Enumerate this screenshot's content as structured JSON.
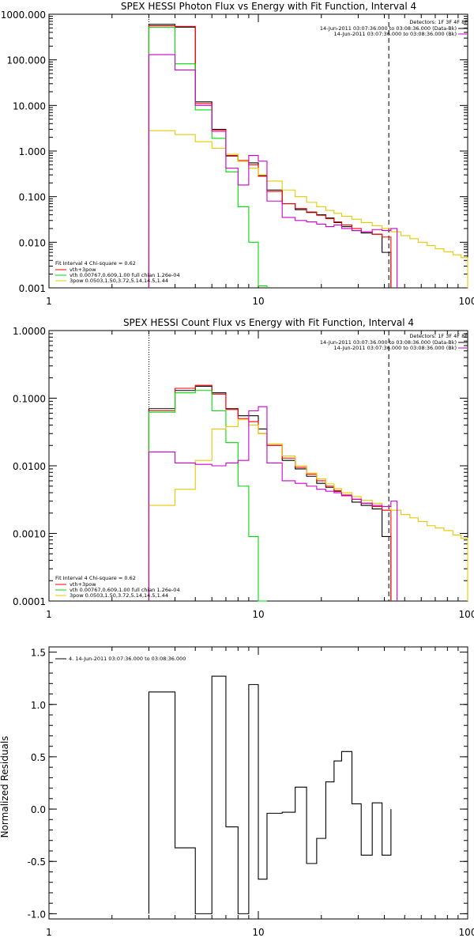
{
  "chart_data": [
    {
      "type": "line",
      "title": "SPEX HESSI Photon Flux vs Energy with Fit Function, Interval 4",
      "x_scale": "log",
      "y_scale": "log",
      "xlim": [
        1,
        100
      ],
      "ylim": [
        0.001,
        1000
      ],
      "x_ticks": [
        1,
        10,
        100
      ],
      "x_tick_labels": [
        "1",
        "10",
        "100"
      ],
      "y_ticks": [
        0.001,
        0.01,
        0.1,
        1,
        10,
        100,
        1000
      ],
      "y_tick_labels": [
        "0.001",
        "0.010",
        "0.100",
        "1.000",
        "10.000",
        "100.000",
        "1000.000"
      ],
      "legend_top_right": [
        "Detectors: 1F 3F 4F 8F",
        "14-Jun-2011 03:07:36.000 to 03:08:36.000 (Data-Bk)",
        "14-Jun-2011 03:07:36.000 to 03:08:36.000 (Bk)"
      ],
      "legend_bottom_left": [
        "Fit Interval 4   Chi-square = 0.62",
        "vth+3pow",
        "vth 0.00767,0.609,1.00   full chian 1.26e-04",
        "3pow 0.0503,1.50,3.72,5.14,14.5,1.44"
      ],
      "vertical_lines": [
        {
          "x": 3,
          "style": "dotted"
        },
        {
          "x": 42,
          "style": "dashed"
        }
      ],
      "series": [
        {
          "name": "Data-Bk",
          "color": "#000000",
          "edges": [
            3,
            4,
            5,
            6,
            7,
            8,
            9,
            10,
            11,
            13,
            15,
            17,
            19,
            21,
            23,
            25,
            28,
            31,
            35,
            39,
            43
          ],
          "values": [
            600,
            520,
            12,
            3.0,
            0.78,
            0.6,
            0.55,
            0.29,
            0.14,
            0.07,
            0.052,
            0.045,
            0.04,
            0.034,
            0.027,
            0.022,
            0.018,
            0.016,
            0.015,
            0.006
          ]
        },
        {
          "name": "vth+3pow",
          "color": "#ff0000",
          "edges": [
            3,
            4,
            5,
            6,
            7,
            8,
            9,
            10,
            11,
            13,
            15,
            17,
            19,
            21,
            23,
            25,
            28,
            31,
            35,
            39,
            43
          ],
          "values": [
            560,
            540,
            11,
            2.9,
            0.8,
            0.62,
            0.5,
            0.28,
            0.13,
            0.07,
            0.055,
            0.046,
            0.039,
            0.033,
            0.028,
            0.024,
            0.02,
            0.017,
            0.015,
            0.013
          ]
        },
        {
          "name": "vth",
          "color": "#00dd00",
          "edges": [
            3,
            4,
            5,
            6,
            7,
            8,
            9,
            10,
            11
          ],
          "values": [
            520,
            82,
            8,
            1.9,
            0.35,
            0.06,
            0.01,
            0.0011
          ]
        },
        {
          "name": "3pow",
          "color": "#e8c800",
          "edges": [
            3,
            4,
            5,
            6,
            7,
            8,
            9,
            10,
            11,
            13,
            15,
            17,
            19,
            21,
            23,
            25,
            28,
            31,
            35,
            39,
            43,
            48,
            53,
            58,
            64,
            70,
            77,
            85,
            93,
            100
          ],
          "values": [
            2.8,
            2.3,
            1.6,
            1.15,
            0.85,
            0.6,
            0.42,
            0.3,
            0.22,
            0.14,
            0.1,
            0.075,
            0.06,
            0.05,
            0.043,
            0.037,
            0.032,
            0.027,
            0.023,
            0.02,
            0.017,
            0.014,
            0.012,
            0.01,
            0.0085,
            0.0072,
            0.0062,
            0.0053,
            0.0046
          ]
        },
        {
          "name": "Bk",
          "color": "#cc00cc",
          "edges": [
            3,
            4,
            5,
            6,
            7,
            8,
            9,
            10,
            11,
            13,
            15,
            17,
            19,
            21,
            23,
            25,
            28,
            31,
            35,
            39,
            43,
            46
          ],
          "values": [
            130,
            60,
            10,
            2.7,
            0.42,
            0.18,
            0.8,
            0.6,
            0.08,
            0.035,
            0.03,
            0.028,
            0.025,
            0.022,
            0.024,
            0.02,
            0.018,
            0.017,
            0.019,
            0.018,
            0.02
          ]
        }
      ]
    },
    {
      "type": "line",
      "title": "SPEX HESSI Count Flux vs Energy with Fit Function, Interval 4",
      "x_scale": "log",
      "y_scale": "log",
      "xlim": [
        1,
        100
      ],
      "ylim": [
        0.0001,
        1
      ],
      "x_ticks": [
        1,
        10,
        100
      ],
      "x_tick_labels": [
        "1",
        "10",
        "100"
      ],
      "y_ticks": [
        0.0001,
        0.001,
        0.01,
        0.1,
        1
      ],
      "y_tick_labels": [
        "0.0001",
        "0.0010",
        "0.0100",
        "0.1000",
        "1.0000"
      ],
      "legend_top_right": [
        "Detectors: 1F 3F 4F 8F",
        "14-Jun-2011 03:07:36.000 to 03:08:36.000 (Data-Bk)",
        "14-Jun-2011 03:07:36.000 to 03:08:36.000 (Bk)"
      ],
      "legend_bottom_left": [
        "Fit Interval 4   Chi-square = 0.62",
        "vth+3pow",
        "vth 0.00767,0.609,1.00   full chian 1.26e-04",
        "3pow 0.0503,1.50,3.72,5.14,14.5,1.44"
      ],
      "vertical_lines": [
        {
          "x": 3,
          "style": "dotted"
        },
        {
          "x": 42,
          "style": "dashed"
        }
      ],
      "series": [
        {
          "name": "Data-Bk",
          "color": "#000000",
          "edges": [
            3,
            4,
            5,
            6,
            7,
            8,
            9,
            10,
            11,
            13,
            15,
            17,
            19,
            21,
            23,
            25,
            28,
            31,
            35,
            39,
            43
          ],
          "values": [
            0.07,
            0.13,
            0.15,
            0.12,
            0.07,
            0.055,
            0.055,
            0.035,
            0.02,
            0.012,
            0.009,
            0.007,
            0.0055,
            0.0048,
            0.0042,
            0.0036,
            0.0029,
            0.0026,
            0.0023,
            0.0009
          ]
        },
        {
          "name": "vth+3pow",
          "color": "#ff0000",
          "edges": [
            3,
            4,
            5,
            6,
            7,
            8,
            9,
            10,
            11,
            13,
            15,
            17,
            19,
            21,
            23,
            25,
            28,
            31,
            35,
            39,
            43
          ],
          "values": [
            0.065,
            0.14,
            0.155,
            0.115,
            0.068,
            0.05,
            0.045,
            0.03,
            0.02,
            0.013,
            0.0095,
            0.0075,
            0.006,
            0.005,
            0.0043,
            0.0037,
            0.0032,
            0.0028,
            0.0025,
            0.0022
          ]
        },
        {
          "name": "vth",
          "color": "#00dd00",
          "edges": [
            3,
            4,
            5,
            6,
            7,
            8,
            9,
            10,
            11
          ],
          "values": [
            0.062,
            0.12,
            0.13,
            0.065,
            0.022,
            0.005,
            0.0009,
            0.0001
          ]
        },
        {
          "name": "3pow",
          "color": "#e8c800",
          "edges": [
            3,
            4,
            5,
            6,
            7,
            8,
            9,
            10,
            11,
            13,
            15,
            17,
            19,
            21,
            23,
            25,
            28,
            31,
            35,
            39,
            43,
            48,
            53,
            58,
            64,
            70,
            77,
            85,
            93,
            100
          ],
          "values": [
            0.0026,
            0.0045,
            0.012,
            0.035,
            0.038,
            0.048,
            0.04,
            0.03,
            0.021,
            0.014,
            0.01,
            0.0078,
            0.0064,
            0.0054,
            0.0046,
            0.004,
            0.0035,
            0.0031,
            0.0028,
            0.0025,
            0.0022,
            0.0019,
            0.0017,
            0.0015,
            0.0013,
            0.0012,
            0.0011,
            0.00095,
            0.00085
          ]
        },
        {
          "name": "Bk",
          "color": "#cc00cc",
          "edges": [
            3,
            4,
            5,
            6,
            7,
            8,
            9,
            10,
            11,
            13,
            15,
            17,
            19,
            21,
            23,
            25,
            28,
            31,
            35,
            39,
            43,
            46
          ],
          "values": [
            0.016,
            0.011,
            0.0105,
            0.01,
            0.011,
            0.012,
            0.065,
            0.075,
            0.011,
            0.006,
            0.0055,
            0.005,
            0.0045,
            0.0042,
            0.004,
            0.0036,
            0.0032,
            0.0028,
            0.0026,
            0.0025,
            0.003
          ]
        }
      ]
    },
    {
      "type": "line",
      "title": "",
      "x_scale": "log",
      "y_scale": "linear",
      "xlim": [
        1,
        100
      ],
      "ylim": [
        -1.05,
        1.55
      ],
      "ylabel": "Normalized Residuals",
      "x_ticks": [
        1,
        10,
        100
      ],
      "x_tick_labels": [
        "1",
        "10",
        "100"
      ],
      "y_ticks": [
        -1.0,
        -0.5,
        0.0,
        0.5,
        1.0,
        1.5
      ],
      "y_tick_labels": [
        "-1.0",
        "-0.5",
        "0.0",
        "0.5",
        "1.0",
        "1.5"
      ],
      "legend_top_left": [
        "4. 14-Jun-2011 03:07:36.000 to 03:08:36.000"
      ],
      "series": [
        {
          "name": "4. 14-Jun-2011 03:07:36.000 to 03:08:36.000",
          "color": "#000000",
          "edges": [
            3,
            4,
            5,
            6,
            7,
            8,
            9,
            10,
            11,
            13,
            15,
            17,
            19,
            21,
            23,
            25,
            28,
            31,
            35,
            39,
            43
          ],
          "values": [
            1.12,
            -0.37,
            -1.0,
            1.27,
            -0.17,
            -1.0,
            1.19,
            -0.67,
            -0.04,
            -0.03,
            0.21,
            -0.52,
            -0.28,
            0.26,
            0.46,
            0.55,
            0.05,
            -0.44,
            0.06,
            -0.44,
            0.0
          ],
          "drop_to": -1.0
        }
      ]
    }
  ]
}
